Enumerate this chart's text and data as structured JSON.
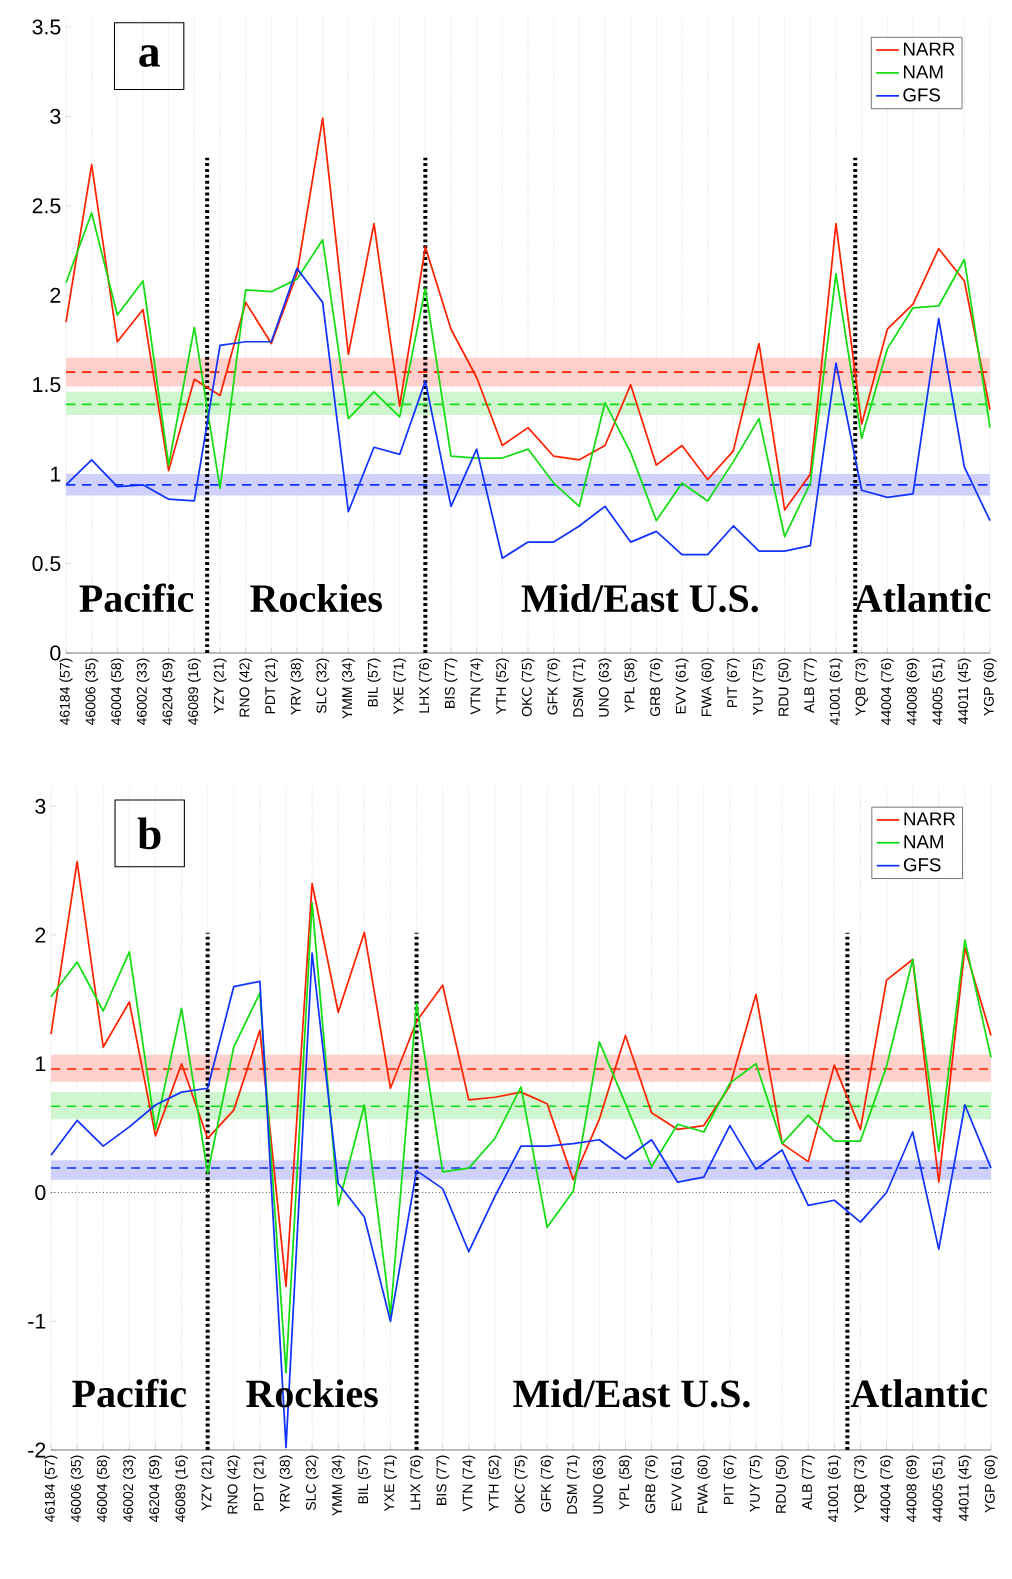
{
  "chart_data": [
    {
      "type": "line",
      "title": "a",
      "categories": [
        "46184 (57)",
        "46006 (35)",
        "46004 (58)",
        "46002 (33)",
        "46204 (59)",
        "46089 (16)",
        "YZY (21)",
        "RNO (42)",
        "PDT (21)",
        "YRV (38)",
        "SLC (32)",
        "YMM (34)",
        "BIL (57)",
        "YXE (71)",
        "LHX (76)",
        "BIS (77)",
        "VTN (74)",
        "YTH (52)",
        "OKC (75)",
        "GFK (76)",
        "DSM (71)",
        "UNO (63)",
        "YPL (58)",
        "GRB (76)",
        "EVV (61)",
        "FWA (60)",
        "PIT (67)",
        "YUY (75)",
        "RDU (50)",
        "ALB (77)",
        "41001 (61)",
        "YQB (73)",
        "44004 (76)",
        "44008 (69)",
        "44005 (51)",
        "44011 (45)",
        "YGP (60)"
      ],
      "series": [
        {
          "name": "NARR",
          "color": "#ff2200",
          "values": [
            1.85,
            2.73,
            1.74,
            1.92,
            1.02,
            1.53,
            1.44,
            1.96,
            1.73,
            2.12,
            2.99,
            1.67,
            2.4,
            1.38,
            2.27,
            1.81,
            1.54,
            1.16,
            1.26,
            1.1,
            1.08,
            1.16,
            1.5,
            1.05,
            1.16,
            0.97,
            1.13,
            1.73,
            0.8,
            1.0,
            2.4,
            1.28,
            1.81,
            1.95,
            2.26,
            2.08,
            1.36
          ]
        },
        {
          "name": "NAM",
          "color": "#11dd11",
          "values": [
            2.07,
            2.46,
            1.89,
            2.08,
            1.05,
            1.82,
            0.92,
            2.03,
            2.02,
            2.09,
            2.31,
            1.31,
            1.46,
            1.32,
            2.04,
            1.1,
            1.09,
            1.09,
            1.14,
            0.95,
            0.82,
            1.4,
            1.12,
            0.74,
            0.95,
            0.85,
            1.07,
            1.31,
            0.65,
            0.95,
            2.12,
            1.2,
            1.7,
            1.93,
            1.94,
            2.2,
            1.26
          ]
        },
        {
          "name": "GFS",
          "color": "#1133ff",
          "values": [
            0.94,
            1.08,
            0.93,
            0.94,
            0.86,
            0.85,
            1.72,
            1.74,
            1.74,
            2.15,
            1.96,
            0.79,
            1.15,
            1.11,
            1.52,
            0.82,
            1.14,
            0.53,
            0.62,
            0.62,
            0.71,
            0.82,
            0.62,
            0.68,
            0.55,
            0.55,
            0.71,
            0.57,
            0.57,
            0.6,
            1.62,
            0.91,
            0.87,
            0.89,
            1.87,
            1.04,
            0.74
          ]
        }
      ],
      "ylim": [
        0,
        3.55
      ],
      "yticks": [
        0,
        0.5,
        1,
        1.5,
        2,
        2.5,
        3,
        3.5
      ],
      "grid": "x",
      "legend": "top right",
      "bands": [
        {
          "axis": "y",
          "from": 1.49,
          "to": 1.65,
          "color": "#ffd0cc"
        },
        {
          "axis": "y",
          "from": 1.33,
          "to": 1.46,
          "color": "#d0f6d0"
        },
        {
          "axis": "y",
          "from": 0.88,
          "to": 1.0,
          "color": "#d0d0fc"
        }
      ],
      "ref_lines": [
        {
          "axis": "y",
          "value": 1.57,
          "color": "#ff2200",
          "line_style": "dashed"
        },
        {
          "axis": "y",
          "value": 1.39,
          "color": "#11dd11",
          "line_style": "dashed"
        },
        {
          "axis": "y",
          "value": 0.94,
          "color": "#1133ff",
          "line_style": "dashed"
        }
      ],
      "annotations": [
        "Pacific",
        "Rockies",
        "Mid/East U.S.",
        "Atlantic"
      ]
    },
    {
      "type": "line",
      "title": "b",
      "categories": [
        "46184 (57)",
        "46006 (35)",
        "46004 (58)",
        "46002 (33)",
        "46204 (59)",
        "46089 (16)",
        "YZY (21)",
        "RNO (42)",
        "PDT (21)",
        "YRV (38)",
        "SLC (32)",
        "YMM (34)",
        "BIL (57)",
        "YXE (71)",
        "LHX (76)",
        "BIS (77)",
        "VTN (74)",
        "YTH (52)",
        "OKC (75)",
        "GFK (76)",
        "DSM (71)",
        "UNO (63)",
        "YPL (58)",
        "GRB (76)",
        "EVV (61)",
        "FWA (60)",
        "PIT (67)",
        "YUY (75)",
        "RDU (50)",
        "ALB (77)",
        "41001 (61)",
        "YQB (73)",
        "44004 (76)",
        "44008 (69)",
        "44005 (51)",
        "44011 (45)",
        "YGP (60)"
      ],
      "series": [
        {
          "name": "NARR",
          "color": "#ff2200",
          "values": [
            1.23,
            2.57,
            1.13,
            1.48,
            0.44,
            1.0,
            0.42,
            0.64,
            1.26,
            -0.73,
            2.4,
            1.4,
            2.02,
            0.81,
            1.33,
            1.61,
            0.72,
            0.74,
            0.78,
            0.69,
            0.1,
            0.57,
            1.22,
            0.62,
            0.49,
            0.52,
            0.83,
            1.54,
            0.38,
            0.24,
            0.99,
            0.49,
            1.65,
            1.81,
            0.08,
            1.9,
            1.22
          ]
        },
        {
          "name": "NAM",
          "color": "#11dd11",
          "values": [
            1.52,
            1.79,
            1.41,
            1.87,
            0.49,
            1.43,
            0.15,
            1.13,
            1.55,
            -1.4,
            2.25,
            -0.1,
            0.68,
            -0.95,
            1.47,
            0.16,
            0.19,
            0.42,
            0.82,
            -0.27,
            0.01,
            1.17,
            0.69,
            0.2,
            0.53,
            0.47,
            0.85,
            1.0,
            0.38,
            0.6,
            0.4,
            0.4,
            0.98,
            1.81,
            0.32,
            1.96,
            1.05
          ]
        },
        {
          "name": "GFS",
          "color": "#1133ff",
          "values": [
            0.29,
            0.56,
            0.36,
            0.51,
            0.68,
            0.78,
            0.81,
            1.6,
            1.64,
            -1.98,
            1.86,
            0.07,
            -0.19,
            -1.0,
            0.17,
            0.03,
            -0.46,
            -0.03,
            0.36,
            0.36,
            0.38,
            0.41,
            0.26,
            0.41,
            0.08,
            0.12,
            0.52,
            0.18,
            0.33,
            -0.1,
            -0.06,
            -0.23,
            0.0,
            0.47,
            -0.44,
            0.68,
            0.19
          ]
        }
      ],
      "ylim": [
        -2,
        3.15
      ],
      "yticks": [
        -2,
        -1,
        0,
        1,
        2,
        3
      ],
      "grid": "x",
      "legend": "top right",
      "bands": [
        {
          "axis": "y",
          "from": 0.86,
          "to": 1.07,
          "color": "#ffd0cc"
        },
        {
          "axis": "y",
          "from": 0.57,
          "to": 0.78,
          "color": "#d0f6d0"
        },
        {
          "axis": "y",
          "from": 0.1,
          "to": 0.25,
          "color": "#d0d0fc"
        }
      ],
      "ref_lines": [
        {
          "axis": "y",
          "value": 0,
          "color": "#000000",
          "line_style": "dotted"
        },
        {
          "axis": "y",
          "value": 0.96,
          "color": "#ff2200",
          "line_style": "dashed"
        },
        {
          "axis": "y",
          "value": 0.67,
          "color": "#11dd11",
          "line_style": "dashed"
        },
        {
          "axis": "y",
          "value": 0.19,
          "color": "#1133ff",
          "line_style": "dashed"
        }
      ],
      "annotations": [
        "Pacific",
        "Rockies",
        "Mid/East U.S.",
        "Atlantic"
      ]
    }
  ]
}
